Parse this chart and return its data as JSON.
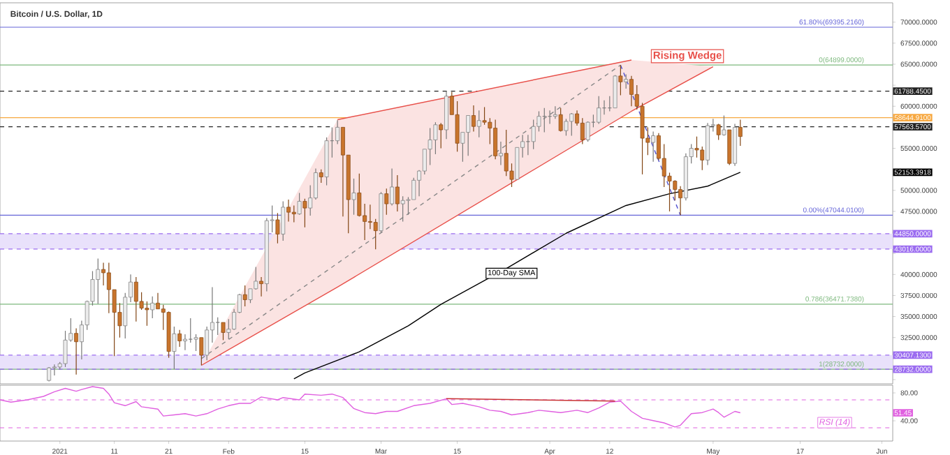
{
  "chart_data": [
    {
      "type": "candlestick",
      "title": "Bitcoin / U.S. Dollar, 1D",
      "tick_labels": "y",
      "xlim": [
        "2020-12-21",
        "2021-06-03"
      ],
      "ylim": [
        27000,
        72300
      ],
      "yticks": [
        {
          "value": 27500,
          "label": null
        },
        {
          "value": 30000,
          "label": null
        },
        {
          "value": 32500,
          "label": "32500.0000"
        },
        {
          "value": 35000,
          "label": "35000.0000"
        },
        {
          "value": 37500,
          "label": "37500.0000"
        },
        {
          "value": 40000,
          "label": "40000.0000"
        },
        {
          "value": 42500,
          "label": null
        },
        {
          "value": 45000,
          "label": null
        },
        {
          "value": 47500,
          "label": "47500.0000"
        },
        {
          "value": 50000,
          "label": "50000.0000"
        },
        {
          "value": 52500,
          "label": null
        },
        {
          "value": 55000,
          "label": "55000.0000"
        },
        {
          "value": 57500,
          "label": null
        },
        {
          "value": 60000,
          "label": "60000.0000"
        },
        {
          "value": 62500,
          "label": null
        },
        {
          "value": 65000,
          "label": "65000.0000"
        },
        {
          "value": 67500,
          "label": "67500.0000"
        },
        {
          "value": 70000,
          "label": "70000.0000"
        }
      ],
      "x": [
        "2020-12-30",
        "2020-12-31",
        "2021-01-01",
        "2021-01-02",
        "2021-01-03",
        "2021-01-04",
        "2021-01-05",
        "2021-01-06",
        "2021-01-07",
        "2021-01-08",
        "2021-01-09",
        "2021-01-10",
        "2021-01-11",
        "2021-01-12",
        "2021-01-13",
        "2021-01-14",
        "2021-01-15",
        "2021-01-16",
        "2021-01-17",
        "2021-01-18",
        "2021-01-19",
        "2021-01-20",
        "2021-01-21",
        "2021-01-22",
        "2021-01-23",
        "2021-01-24",
        "2021-01-25",
        "2021-01-26",
        "2021-01-27",
        "2021-01-28",
        "2021-01-29",
        "2021-01-30",
        "2021-01-31",
        "2021-02-01",
        "2021-02-02",
        "2021-02-03",
        "2021-02-04",
        "2021-02-05",
        "2021-02-06",
        "2021-02-07",
        "2021-02-08",
        "2021-02-09",
        "2021-02-10",
        "2021-02-11",
        "2021-02-12",
        "2021-02-13",
        "2021-02-14",
        "2021-02-15",
        "2021-02-16",
        "2021-02-17",
        "2021-02-18",
        "2021-02-19",
        "2021-02-20",
        "2021-02-21",
        "2021-02-22",
        "2021-02-23",
        "2021-02-24",
        "2021-02-25",
        "2021-02-26",
        "2021-02-27",
        "2021-02-28",
        "2021-03-01",
        "2021-03-02",
        "2021-03-03",
        "2021-03-04",
        "2021-03-05",
        "2021-03-06",
        "2021-03-07",
        "2021-03-08",
        "2021-03-09",
        "2021-03-10",
        "2021-03-11",
        "2021-03-12",
        "2021-03-13",
        "2021-03-14",
        "2021-03-15",
        "2021-03-16",
        "2021-03-17",
        "2021-03-18",
        "2021-03-19",
        "2021-03-20",
        "2021-03-21",
        "2021-03-22",
        "2021-03-23",
        "2021-03-24",
        "2021-03-25",
        "2021-03-26",
        "2021-03-27",
        "2021-03-28",
        "2021-03-29",
        "2021-03-30",
        "2021-03-31",
        "2021-04-01",
        "2021-04-02",
        "2021-04-03",
        "2021-04-04",
        "2021-04-05",
        "2021-04-06",
        "2021-04-07",
        "2021-04-08",
        "2021-04-09",
        "2021-04-10",
        "2021-04-11",
        "2021-04-12",
        "2021-04-13",
        "2021-04-14",
        "2021-04-15",
        "2021-04-16",
        "2021-04-17",
        "2021-04-18",
        "2021-04-19",
        "2021-04-20",
        "2021-04-21",
        "2021-04-22",
        "2021-04-23",
        "2021-04-24",
        "2021-04-25",
        "2021-04-26",
        "2021-04-27",
        "2021-04-28",
        "2021-04-29",
        "2021-04-30",
        "2021-05-01",
        "2021-05-02",
        "2021-05-03",
        "2021-05-04",
        "2021-05-05",
        "2021-05-06"
      ],
      "ohlc": [
        [
          27400,
          29000,
          27300,
          28900
        ],
        [
          28900,
          29300,
          28000,
          29000
        ],
        [
          29000,
          29600,
          28700,
          29400
        ],
        [
          29400,
          33300,
          29000,
          32200
        ],
        [
          32200,
          34800,
          32000,
          33000
        ],
        [
          33000,
          33600,
          28100,
          32000
        ],
        [
          32000,
          34500,
          29900,
          34000
        ],
        [
          34000,
          36900,
          33400,
          36800
        ],
        [
          36800,
          40400,
          36300,
          39400
        ],
        [
          39400,
          41900,
          36500,
          40600
        ],
        [
          40600,
          41400,
          38700,
          40200
        ],
        [
          40200,
          41400,
          35400,
          38200
        ],
        [
          38200,
          38200,
          30300,
          35500
        ],
        [
          35500,
          36600,
          32500,
          33900
        ],
        [
          33900,
          37800,
          32400,
          37300
        ],
        [
          37300,
          40000,
          36700,
          39100
        ],
        [
          39100,
          39700,
          34400,
          36800
        ],
        [
          36800,
          37900,
          35800,
          36000
        ],
        [
          36000,
          36800,
          33900,
          35800
        ],
        [
          35800,
          37400,
          34800,
          36600
        ],
        [
          36600,
          37800,
          35900,
          35900
        ],
        [
          35900,
          36400,
          33400,
          35500
        ],
        [
          35500,
          35600,
          30100,
          30850
        ],
        [
          30850,
          33800,
          28732,
          32950
        ],
        [
          32950,
          33400,
          31400,
          32100
        ],
        [
          32100,
          32900,
          31000,
          32300
        ],
        [
          32300,
          34800,
          31900,
          32300
        ],
        [
          32300,
          32900,
          30900,
          32500
        ],
        [
          32500,
          32500,
          29200,
          30400
        ],
        [
          30400,
          33800,
          29800,
          33400
        ],
        [
          33400,
          38500,
          31900,
          34300
        ],
        [
          34300,
          34900,
          32800,
          34300
        ],
        [
          34300,
          34300,
          32200,
          33100
        ],
        [
          33100,
          34700,
          32300,
          33500
        ],
        [
          33500,
          35900,
          33400,
          35500
        ],
        [
          35500,
          37700,
          35400,
          37600
        ],
        [
          37600,
          38700,
          36200,
          37000
        ],
        [
          37000,
          38300,
          36600,
          38300
        ],
        [
          38300,
          40900,
          38200,
          39200
        ],
        [
          39200,
          39700,
          37400,
          38900
        ],
        [
          38900,
          46700,
          38000,
          46400
        ],
        [
          46400,
          48200,
          45000,
          46500
        ],
        [
          46500,
          47300,
          43700,
          44800
        ],
        [
          44800,
          48700,
          44000,
          48000
        ],
        [
          48000,
          48900,
          46300,
          47400
        ],
        [
          47400,
          48200,
          46200,
          47200
        ],
        [
          47200,
          49700,
          47100,
          48700
        ],
        [
          48700,
          49000,
          45600,
          47900
        ],
        [
          47900,
          50600,
          47000,
          49100
        ],
        [
          49100,
          52600,
          48900,
          52100
        ],
        [
          52100,
          52500,
          50900,
          51600
        ],
        [
          51600,
          56300,
          50600,
          55900
        ],
        [
          55900,
          57500,
          53900,
          55900
        ],
        [
          55900,
          58350,
          55500,
          57500
        ],
        [
          57500,
          57500,
          46900,
          54200
        ],
        [
          54200,
          54200,
          44900,
          48900
        ],
        [
          48900,
          51400,
          47100,
          49700
        ],
        [
          49700,
          52000,
          46900,
          47000
        ],
        [
          47000,
          48400,
          44100,
          46300
        ],
        [
          46300,
          48300,
          45400,
          46200
        ],
        [
          46200,
          46600,
          43000,
          45200
        ],
        [
          45200,
          49800,
          45000,
          49600
        ],
        [
          49600,
          50200,
          47100,
          48400
        ],
        [
          48400,
          52600,
          48200,
          50400
        ],
        [
          50400,
          51800,
          47500,
          48400
        ],
        [
          48400,
          49300,
          46300,
          48800
        ],
        [
          48800,
          49200,
          47100,
          48900
        ],
        [
          48900,
          51500,
          48900,
          51200
        ],
        [
          51200,
          52400,
          49300,
          52300
        ],
        [
          52300,
          54900,
          51900,
          54900
        ],
        [
          54900,
          57400,
          53000,
          56000
        ],
        [
          56000,
          58100,
          54300,
          57800
        ],
        [
          57800,
          58000,
          55000,
          57200
        ],
        [
          57200,
          61800,
          56100,
          61200
        ],
        [
          61200,
          61700,
          59000,
          59000
        ],
        [
          59000,
          60600,
          54600,
          55600
        ],
        [
          55600,
          56900,
          53400,
          56900
        ],
        [
          56900,
          58900,
          54100,
          58900
        ],
        [
          58900,
          60100,
          57000,
          57600
        ],
        [
          57600,
          59500,
          56300,
          58300
        ],
        [
          58300,
          59900,
          57800,
          58100
        ],
        [
          58100,
          58600,
          55500,
          57400
        ],
        [
          57400,
          58400,
          53700,
          54100
        ],
        [
          54100,
          55800,
          53000,
          54400
        ],
        [
          54400,
          57200,
          51700,
          52300
        ],
        [
          52300,
          53200,
          50400,
          51300
        ],
        [
          51300,
          55100,
          51300,
          55100
        ],
        [
          55100,
          56600,
          53900,
          55800
        ],
        [
          55800,
          56600,
          54200,
          55800
        ],
        [
          55800,
          58400,
          54900,
          57600
        ],
        [
          57600,
          59400,
          57000,
          58800
        ],
        [
          58800,
          59800,
          56900,
          58800
        ],
        [
          58800,
          59500,
          57900,
          58800
        ],
        [
          58800,
          60000,
          58500,
          59000
        ],
        [
          59000,
          59800,
          57000,
          57100
        ],
        [
          57100,
          58500,
          56500,
          58200
        ],
        [
          58200,
          59200,
          56500,
          59100
        ],
        [
          59100,
          59500,
          57700,
          58000
        ],
        [
          58000,
          58600,
          55500,
          56000
        ],
        [
          56000,
          58200,
          55800,
          58100
        ],
        [
          58100,
          59000,
          57500,
          58100
        ],
        [
          58100,
          61200,
          57900,
          59800
        ],
        [
          59800,
          60700,
          59000,
          59800
        ],
        [
          59800,
          61200,
          59400,
          59800
        ],
        [
          59800,
          63700,
          59800,
          63600
        ],
        [
          63600,
          64899,
          61300,
          62900
        ],
        [
          62900,
          63800,
          62100,
          63200
        ],
        [
          63200,
          63600,
          60000,
          61400
        ],
        [
          61400,
          62500,
          59600,
          60000
        ],
        [
          60000,
          60400,
          51900,
          56200
        ],
        [
          56200,
          57500,
          54200,
          55700
        ],
        [
          55700,
          57000,
          53400,
          56500
        ],
        [
          56500,
          56800,
          53600,
          53800
        ],
        [
          53800,
          55500,
          50400,
          51700
        ],
        [
          51700,
          52100,
          47500,
          51100
        ],
        [
          51100,
          51200,
          48800,
          50100
        ],
        [
          50100,
          50500,
          47044.01,
          49100
        ],
        [
          49100,
          54400,
          48800,
          54000
        ],
        [
          54000,
          55500,
          53200,
          55000
        ],
        [
          55000,
          56400,
          53900,
          54800
        ],
        [
          54800,
          55200,
          52400,
          53600
        ],
        [
          53600,
          58000,
          53000,
          57700
        ],
        [
          57700,
          58500,
          57000,
          57800
        ],
        [
          57800,
          57900,
          56000,
          56600
        ],
        [
          56600,
          58900,
          56500,
          57200
        ],
        [
          57200,
          57200,
          53000,
          53200
        ],
        [
          53200,
          57900,
          52900,
          57500
        ],
        [
          57500,
          58400,
          55300,
          56400
        ]
      ],
      "series": [
        {
          "type": "line",
          "color": "#e8504a",
          "x": [
            "2021-01-27",
            "2021-02-21",
            "2021-04-16",
            "2021-05-01"
          ],
          "values": [
            29200,
            38500,
            59400,
            64700
          ],
          "lower": [
            29200,
            38500,
            59400,
            64700
          ],
          "upper": [
            29200,
            58400,
            65500,
            64700
          ]
        },
        {
          "type": "line",
          "color": "#e8504a",
          "x": [
            "2021-02-21",
            "2021-04-16"
          ],
          "values": [
            58400,
            65500
          ]
        },
        {
          "type": "line",
          "color": "#888888",
          "line_style": "dashed",
          "x": [
            "2021-01-27",
            "2021-04-14"
          ],
          "values": [
            30000,
            64899
          ]
        },
        {
          "type": "line",
          "color": "#5050d0",
          "line_style": "dashed",
          "x": [
            "2021-04-14",
            "2021-04-25"
          ],
          "values": [
            64899,
            47044.01
          ]
        },
        {
          "type": "line",
          "color": "#000000",
          "x": [
            "2021-02-13",
            "2021-02-15",
            "2021-02-25",
            "2021-03-06",
            "2021-03-12",
            "2021-03-24",
            "2021-04-04",
            "2021-04-15",
            "2021-04-23",
            "2021-04-30",
            "2021-05-06"
          ],
          "values": [
            27600,
            28300,
            30800,
            33900,
            36450,
            40700,
            44900,
            48200,
            49600,
            50500,
            52153.3918
          ]
        }
      ],
      "bands": [
        {
          "axis": "y",
          "from": 43016,
          "to": 44850,
          "color": "#e9e1fb"
        },
        {
          "axis": "y",
          "from": 28732,
          "to": 30407.13,
          "color": "#e9e1fb"
        }
      ],
      "ref_lines": [
        {
          "axis": "y",
          "value": 69395.216,
          "color": "#6464d8"
        },
        {
          "axis": "y",
          "value": 64899,
          "color": "#7cb87c"
        },
        {
          "axis": "y",
          "value": 61788.45,
          "label": "61788.4500",
          "color": "#222222",
          "line_style": "dashed"
        },
        {
          "axis": "y",
          "value": 58644.91,
          "label": "58644.9100",
          "color": "#f7a840"
        },
        {
          "axis": "y",
          "value": 57563.57,
          "label": "57563.5700",
          "color": "#222222",
          "line_style": "dashed"
        },
        {
          "axis": "y",
          "value": 47044.01,
          "color": "#6464d8"
        },
        {
          "axis": "y",
          "value": 44850,
          "label": "44850.0000",
          "color": "#9b6cf0",
          "line_style": "dashed"
        },
        {
          "axis": "y",
          "value": 43016,
          "label": "43016.0000",
          "color": "#9b6cf0",
          "line_style": "dashed"
        },
        {
          "axis": "y",
          "value": 36471.738,
          "color": "#7cb87c"
        },
        {
          "axis": "y",
          "value": 30407.13,
          "label": "30407.1300",
          "color": "#9b6cf0",
          "line_style": "dashed"
        },
        {
          "axis": "y",
          "value": 28732,
          "color": "#7cb87c"
        },
        {
          "axis": "y",
          "value": 28732,
          "label": "28732.0000",
          "color": "#9b6cf0",
          "line_style": "dashed"
        }
      ],
      "annotations": [
        {
          "text": "61.80%(69395.2160)",
          "x": "2021-05-29",
          "y": 69395.216
        },
        {
          "text": "0(64899.0000)",
          "x": "2021-05-29",
          "y": 64899
        },
        {
          "text": "0.00%(47044.0100)",
          "x": "2021-05-29",
          "y": 47044.01
        },
        {
          "text": "0.786(36471.7380)",
          "x": "2021-05-29",
          "y": 36471.738
        },
        {
          "text": "1(28732.0000)",
          "x": "2021-05-29",
          "y": 28732
        },
        "Rising Wedge",
        "100-Day SMA",
        "52153.3918"
      ]
    },
    {
      "type": "line",
      "legend": "right",
      "xlim": [
        "2020-12-21",
        "2021-06-03"
      ],
      "ylim": [
        11,
        91
      ],
      "xticks": [
        {
          "value": "2021-01-01",
          "label": "2021"
        },
        {
          "value": "2021-01-11",
          "label": "11"
        },
        {
          "value": "2021-01-21",
          "label": "21"
        },
        {
          "value": "2021-02-01",
          "label": "Feb"
        },
        {
          "value": "2021-02-15",
          "label": "15"
        },
        {
          "value": "2021-03-01",
          "label": "Mar"
        },
        {
          "value": "2021-03-15",
          "label": "15"
        },
        {
          "value": "2021-04-01",
          "label": "Apr"
        },
        {
          "value": "2021-04-12",
          "label": "12"
        },
        {
          "value": "2021-05-01",
          "label": "May"
        },
        {
          "value": "2021-05-17",
          "label": "17"
        },
        {
          "value": "2021-06-01",
          "label": "Jun"
        }
      ],
      "yticks": [
        {
          "value": 40,
          "label": "40.00"
        },
        {
          "value": 80,
          "label": "80.00"
        }
      ],
      "series": [
        {
          "name": "RSI (14)",
          "color": "#e060e0",
          "x": [
            "2020-12-21",
            "2020-12-23",
            "2020-12-26",
            "2020-12-29",
            "2020-12-31",
            "2021-01-02",
            "2021-01-04",
            "2021-01-05",
            "2021-01-07",
            "2021-01-09",
            "2021-01-10",
            "2021-01-11",
            "2021-01-13",
            "2021-01-15",
            "2021-01-16",
            "2021-01-19",
            "2021-01-20",
            "2021-01-22",
            "2021-01-24",
            "2021-01-26",
            "2021-01-28",
            "2021-01-30",
            "2021-02-01",
            "2021-02-03",
            "2021-02-05",
            "2021-02-07",
            "2021-02-10",
            "2021-02-11",
            "2021-02-14",
            "2021-02-15",
            "2021-02-18",
            "2021-02-20",
            "2021-02-22",
            "2021-02-24",
            "2021-02-26",
            "2021-02-28",
            "2021-03-02",
            "2021-03-04",
            "2021-03-07",
            "2021-03-10",
            "2021-03-13",
            "2021-03-14",
            "2021-03-16",
            "2021-03-19",
            "2021-03-21",
            "2021-03-23",
            "2021-03-25",
            "2021-03-28",
            "2021-03-30",
            "2021-04-01",
            "2021-04-03",
            "2021-04-06",
            "2021-04-08",
            "2021-04-10",
            "2021-04-12",
            "2021-04-14",
            "2021-04-16",
            "2021-04-18",
            "2021-04-20",
            "2021-04-22",
            "2021-04-24",
            "2021-04-25",
            "2021-04-27",
            "2021-04-29",
            "2021-05-01",
            "2021-05-02",
            "2021-05-03",
            "2021-05-05",
            "2021-05-06"
          ],
          "values": [
            70,
            66.7,
            70,
            75,
            81.6,
            86.5,
            82.4,
            84.9,
            89,
            86.5,
            78.3,
            65.9,
            61.7,
            67.5,
            60.1,
            56.8,
            46.9,
            48.5,
            50.2,
            46.9,
            50.2,
            56.8,
            61.7,
            65,
            65,
            74.1,
            70,
            73.3,
            70,
            78.3,
            76.6,
            78.3,
            73.3,
            57.6,
            51.8,
            50.2,
            53.5,
            53.5,
            61.7,
            65,
            71.7,
            63.4,
            65,
            60.1,
            55.1,
            53.5,
            48.5,
            51.8,
            55.1,
            53.5,
            51.8,
            55.1,
            51.8,
            58.4,
            66.7,
            68.3,
            53.5,
            43.6,
            40.3,
            37,
            31.2,
            33.7,
            50.2,
            51.8,
            56.8,
            51.8,
            45.2,
            53.5,
            51.45
          ]
        },
        {
          "color": "#c83232",
          "x": [
            "2021-03-13",
            "2021-04-13"
          ],
          "values": [
            71.7,
            68.3
          ]
        }
      ],
      "ref_lines": [
        {
          "axis": "y",
          "value": 70,
          "color": "#e060e0",
          "line_style": "dashed"
        },
        {
          "axis": "y",
          "value": 30,
          "color": "#e060e0",
          "line_style": "dashed"
        }
      ],
      "annotations": [
        "51.45"
      ]
    }
  ]
}
